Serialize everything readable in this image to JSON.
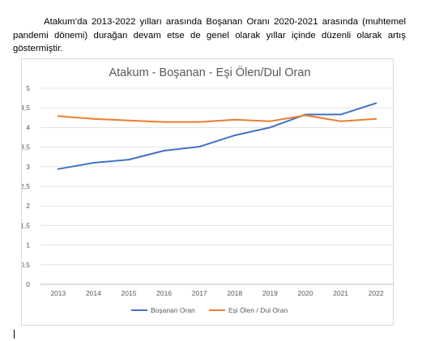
{
  "paragraph": "Atakum’da 2013-2022 yılları arasında Boşanan Oranı 2020-2021 arasında (muhtemel pandemi dönemi) durağan devam etse de genel olarak yıllar içinde düzenli olarak artış göstermiştir.",
  "chart_data": {
    "type": "line",
    "title": "Atakum - Boşanan - Eşi Ölen/Dul Oran",
    "categories": [
      "2013",
      "2014",
      "2015",
      "2016",
      "2017",
      "2018",
      "2019",
      "2020",
      "2021",
      "2022"
    ],
    "series": [
      {
        "name": "Boşanan Oran",
        "color": "#4472c4",
        "values": [
          2.94,
          3.1,
          3.18,
          3.41,
          3.51,
          3.8,
          4.0,
          4.33,
          4.33,
          4.62
        ]
      },
      {
        "name": "Eşi Ölen / Dul Oran",
        "color": "#ed7d31",
        "values": [
          4.29,
          4.22,
          4.18,
          4.14,
          4.14,
          4.2,
          4.16,
          4.31,
          4.16,
          4.22
        ]
      }
    ],
    "yticks": [
      "0",
      "0,5",
      "1",
      "1,5",
      "2",
      "2,5",
      "3",
      "3,5",
      "4",
      "4,5",
      "5"
    ],
    "ylim": [
      0,
      5
    ],
    "grid": true,
    "legend_position": "bottom"
  }
}
